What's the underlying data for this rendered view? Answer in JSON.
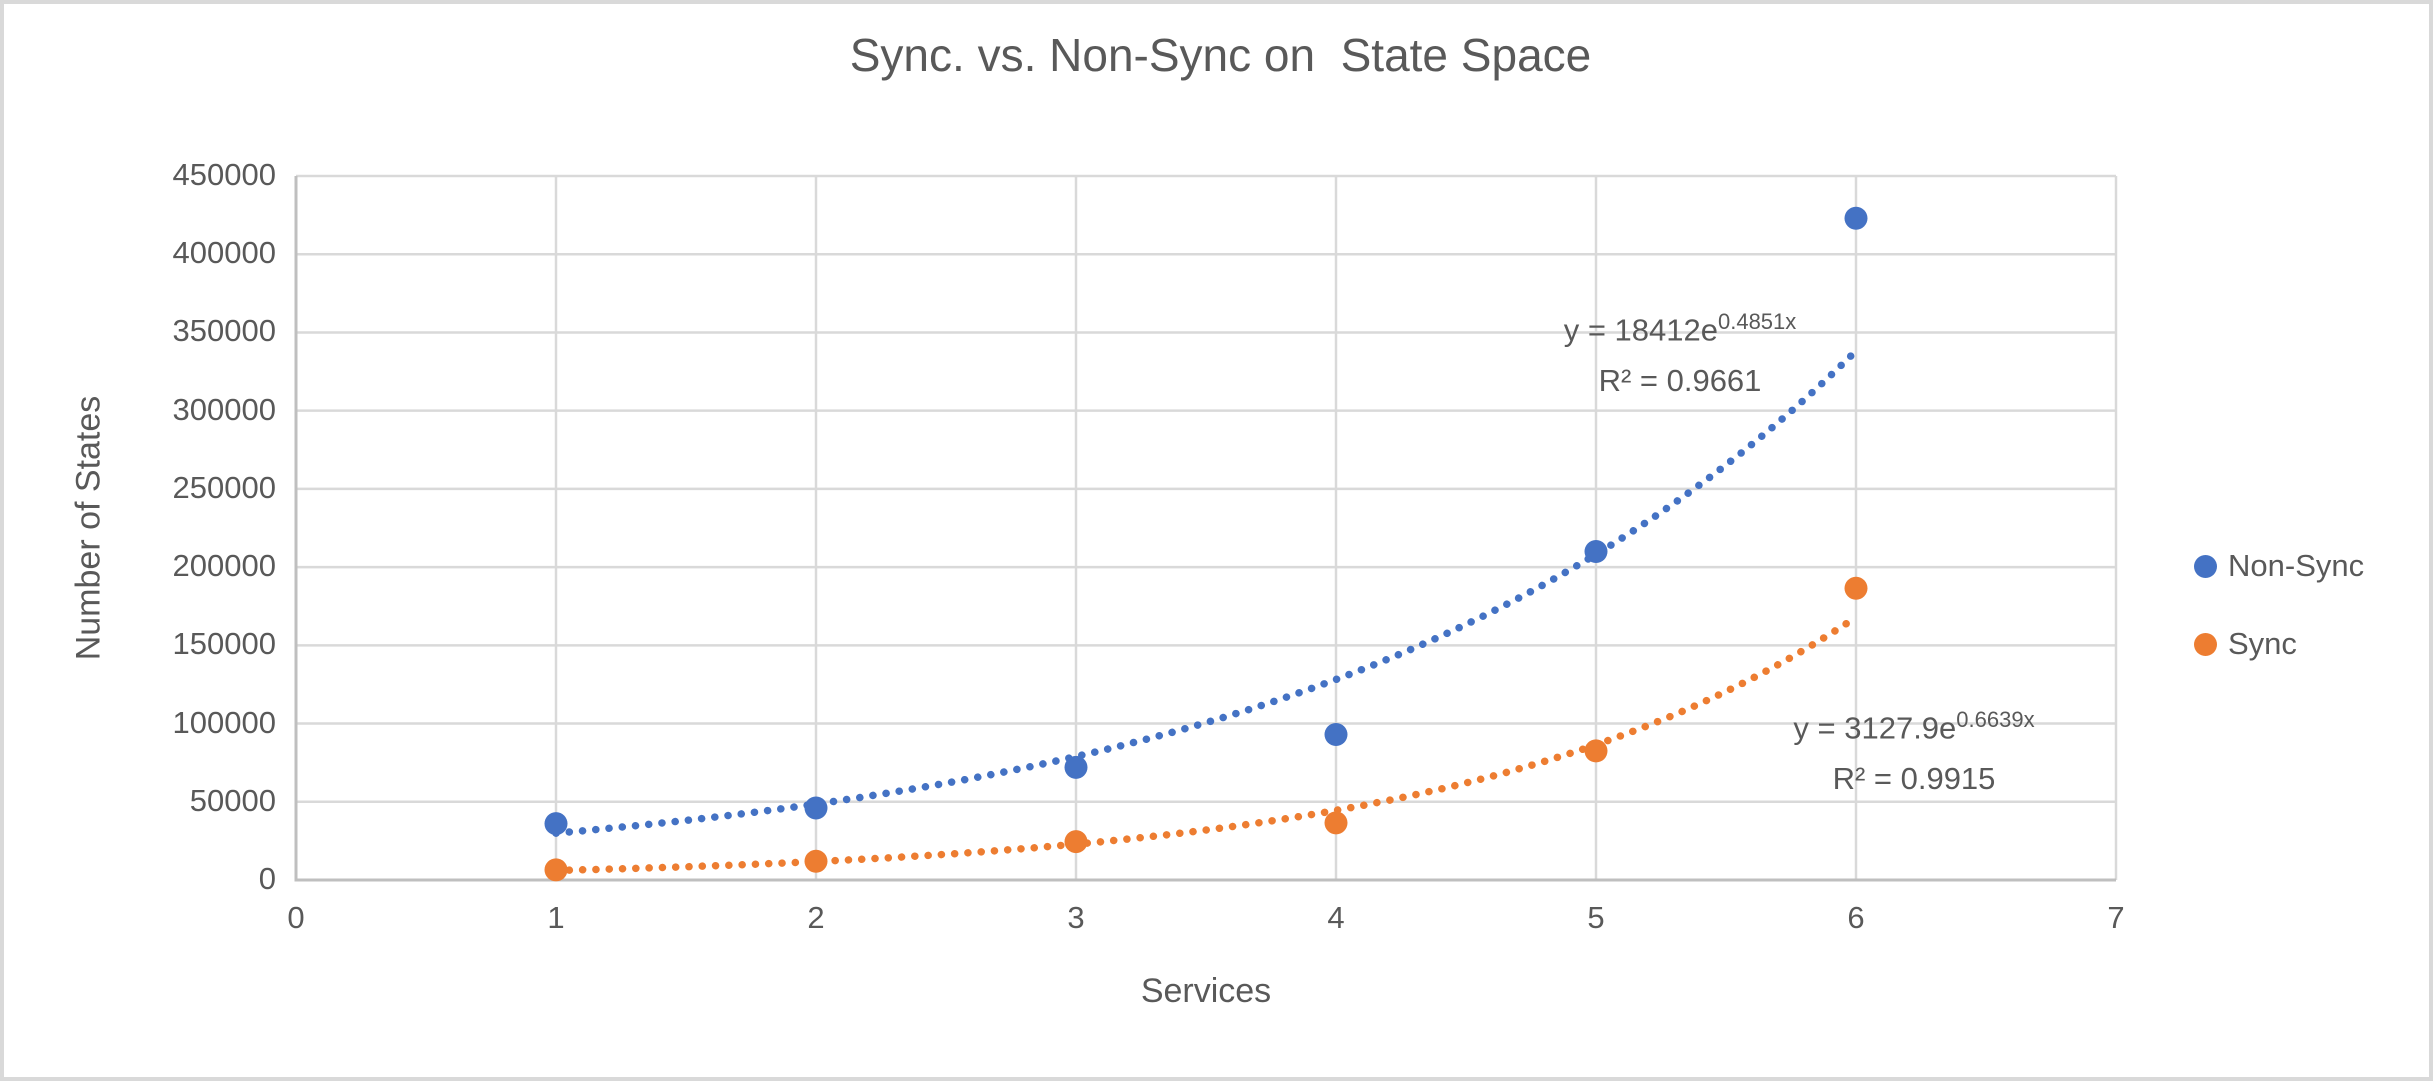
{
  "window": {
    "background": "#ffffff",
    "border_color": "#d9d9d9"
  },
  "chart_data": {
    "type": "scatter",
    "title": "Sync. vs. Non-Sync on  State Space",
    "xlabel": "Services",
    "ylabel": "Number of States",
    "xlim": [
      0,
      7
    ],
    "ylim": [
      0,
      450000
    ],
    "x_tick_step": 1,
    "y_tick_step": 50000,
    "grid": true,
    "legend_position": "right",
    "x": [
      1,
      2,
      3,
      4,
      5,
      6
    ],
    "series": [
      {
        "name": "Non-Sync",
        "color": "#4472C4",
        "marker": "circle",
        "values": [
          36000,
          46000,
          72000,
          93000,
          210000,
          423000
        ],
        "trendline": {
          "type": "exponential",
          "a": 18412,
          "b": 0.4851,
          "range": [
            1,
            6
          ],
          "style": "dotted"
        },
        "equation": {
          "base": "y = 18412e",
          "exponent": "0.4851x",
          "r2": "R² = 0.9661"
        }
      },
      {
        "name": "Sync",
        "color": "#ED7D31",
        "marker": "circle",
        "values": [
          6500,
          12000,
          24500,
          36500,
          82500,
          186500
        ],
        "trendline": {
          "type": "exponential",
          "a": 3127.9,
          "b": 0.6639,
          "range": [
            1,
            6
          ],
          "style": "dotted"
        },
        "equation": {
          "base": "y = 3127.9e",
          "exponent": "0.6639x",
          "r2": "R² = 0.9915"
        }
      }
    ],
    "colors": {
      "gridline": "#d9d9d9",
      "axis_line": "#bfbfbf",
      "text": "#595959"
    }
  }
}
